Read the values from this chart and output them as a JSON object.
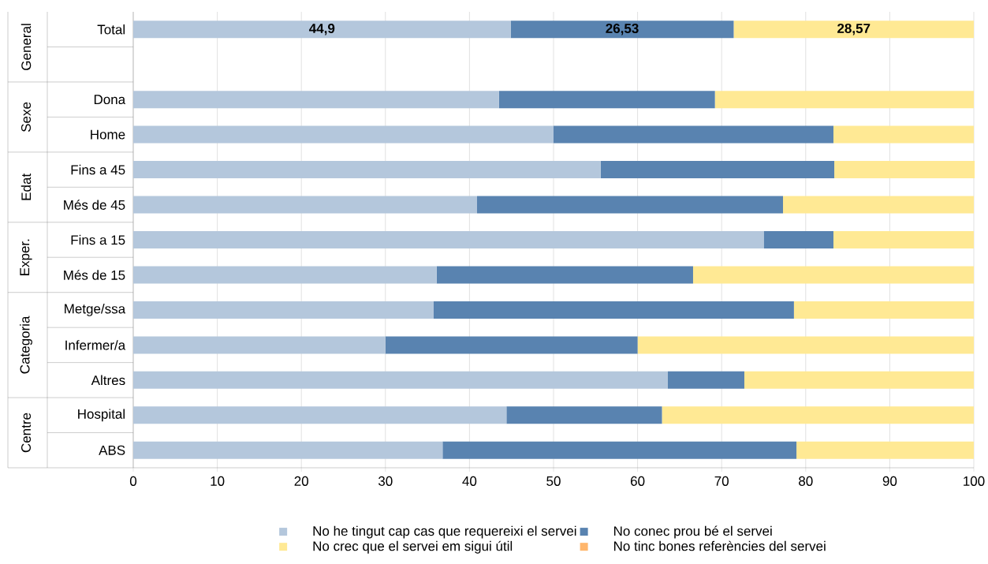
{
  "chart_data": {
    "type": "bar",
    "orientation": "horizontal",
    "stacked": true,
    "categories": [
      "Total",
      null,
      "Dona",
      "Home",
      "Fins a 45",
      "Més de 45",
      "Fins a 15",
      "Més de 15",
      "Metge/ssa",
      "Infermer/a",
      "Altres",
      "Hospital",
      "ABS"
    ],
    "series": [
      {
        "name": "No he tingut cap cas que requereixi el servei",
        "color": "#b4c7dc",
        "values": [
          44.9,
          null,
          43.5,
          50,
          55.6,
          40.9,
          75,
          36.1,
          35.7,
          30,
          63.6,
          44.4,
          36.8
        ],
        "value_labels": [
          "44,9",
          null,
          null,
          null,
          null,
          null,
          null,
          null,
          null,
          null,
          null,
          null,
          null
        ]
      },
      {
        "name": "No conec prou bé el servei",
        "color": "#5983b0",
        "values": [
          26.53,
          null,
          25.7,
          33.3,
          27.8,
          36.4,
          8.3,
          30.5,
          42.9,
          30,
          9.1,
          18.5,
          42.1
        ],
        "value_labels": [
          "26,53",
          null,
          null,
          null,
          null,
          null,
          null,
          null,
          null,
          null,
          null,
          null,
          null
        ]
      },
      {
        "name": "No crec que el servei em sigui útil",
        "color": "#ffe994",
        "values": [
          28.57,
          null,
          30.8,
          16.7,
          16.7,
          22.7,
          16.7,
          33.4,
          21.4,
          40,
          27.3,
          37.1,
          21.1
        ],
        "value_labels": [
          "28,57",
          null,
          null,
          null,
          null,
          null,
          null,
          null,
          null,
          null,
          null,
          null,
          null
        ]
      },
      {
        "name": "No tinc bones referències del servei",
        "color": "#ffb66c",
        "values": [
          0,
          null,
          0,
          0,
          0,
          0,
          0,
          0,
          0,
          0,
          0,
          0,
          0
        ]
      }
    ],
    "xlim": [
      0,
      100
    ],
    "xticks": [
      0,
      10,
      20,
      30,
      40,
      50,
      60,
      70,
      80,
      90,
      100
    ],
    "grid": "x",
    "legend": "bottom",
    "annotations": [
      "General",
      "Sexe",
      "Edat",
      "Exper.",
      "Categoria",
      "Centre"
    ]
  }
}
